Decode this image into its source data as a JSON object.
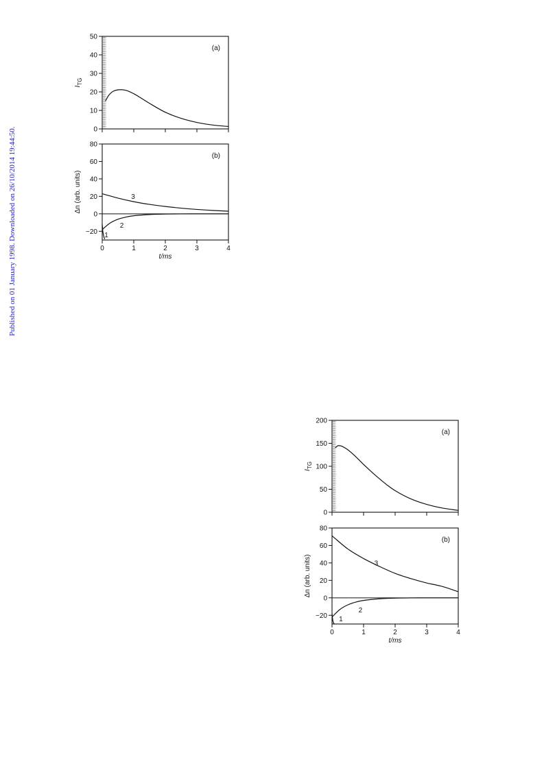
{
  "watermark": "Published on 01 January 1998. Downloaded on 26/10/2014 19:44:50.",
  "chart_data": [
    {
      "type": "line",
      "figure": 1,
      "panel": "(a)",
      "ylabel": "I",
      "ylabel_sub": "TG",
      "xlim": [
        0,
        4
      ],
      "ylim": [
        0,
        50
      ],
      "yticks": [
        0,
        10,
        20,
        30,
        40,
        50
      ],
      "xticks": [
        0,
        1,
        2,
        3,
        4
      ],
      "x_tick_labels_shown": false,
      "series": [
        {
          "x": [
            0.1,
            0.2,
            0.3,
            0.4,
            0.5,
            0.6,
            0.7,
            0.8,
            1.0,
            1.2,
            1.5,
            2.0,
            2.5,
            3.0,
            3.5,
            4.0
          ],
          "values": [
            15,
            18,
            19.8,
            20.7,
            21.1,
            21.2,
            21.0,
            20.6,
            19.0,
            17.0,
            13.8,
            9.0,
            5.7,
            3.5,
            2.1,
            1.3
          ]
        }
      ]
    },
    {
      "type": "line",
      "figure": 1,
      "panel": "(b)",
      "xlabel": "t/ms",
      "ylabel": "Δn (arb. units)",
      "xlim": [
        0,
        4
      ],
      "ylim": [
        -30,
        80
      ],
      "yticks": [
        -20,
        0,
        20,
        40,
        60,
        80
      ],
      "ytick_labels": [
        "−20",
        "0",
        "20",
        "40",
        "60",
        "80"
      ],
      "xticks": [
        0,
        1,
        2,
        3,
        4
      ],
      "series": [
        {
          "label": "1",
          "x": [
            0.0,
            0.02,
            0.05,
            0.08
          ],
          "values": [
            -12,
            -20,
            -26,
            -29
          ]
        },
        {
          "label": "2",
          "x": [
            0.0,
            0.25,
            0.5,
            0.75,
            1.0,
            1.5,
            2.0,
            2.5,
            3.0,
            4.0
          ],
          "values": [
            -18,
            -10.6,
            -6.2,
            -3.7,
            -2.2,
            -0.8,
            -0.3,
            -0.1,
            0,
            0
          ]
        },
        {
          "label": "3",
          "x": [
            0.0,
            0.5,
            1.0,
            1.5,
            2.0,
            2.5,
            3.0,
            3.5,
            4.0
          ],
          "values": [
            23,
            18,
            13.9,
            10.8,
            8.4,
            6.5,
            5.0,
            3.9,
            3.0
          ]
        }
      ]
    },
    {
      "type": "line",
      "figure": 2,
      "panel": "(a)",
      "ylabel": "I",
      "ylabel_sub": "TG",
      "xlim": [
        0,
        4
      ],
      "ylim": [
        0,
        200
      ],
      "yticks": [
        0,
        50,
        100,
        150,
        200
      ],
      "xticks": [
        0,
        1,
        2,
        3,
        4
      ],
      "x_tick_labels_shown": false,
      "series": [
        {
          "x": [
            0.1,
            0.2,
            0.3,
            0.5,
            0.75,
            1.0,
            1.25,
            1.5,
            1.75,
            2.0,
            2.5,
            3.0,
            3.5,
            4.0
          ],
          "values": [
            140,
            145,
            144,
            136,
            121,
            104,
            88,
            73,
            59,
            47,
            29,
            17,
            9,
            4
          ]
        }
      ]
    },
    {
      "type": "line",
      "figure": 2,
      "panel": "(b)",
      "xlabel": "t/ms",
      "ylabel": "Δn (arb. units)",
      "xlim": [
        0,
        4
      ],
      "ylim": [
        -30,
        80
      ],
      "yticks": [
        -20,
        0,
        20,
        40,
        60,
        80
      ],
      "ytick_labels": [
        "−20",
        "0",
        "20",
        "40",
        "60",
        "80"
      ],
      "xticks": [
        0,
        1,
        2,
        3,
        4
      ],
      "series": [
        {
          "label": "1",
          "x": [
            0.0,
            0.02,
            0.05,
            0.08
          ],
          "values": [
            -18,
            -25,
            -29,
            -30
          ]
        },
        {
          "label": "2",
          "x": [
            0.0,
            0.25,
            0.5,
            0.75,
            1.0,
            1.5,
            2.0,
            2.5,
            3.0,
            4.0
          ],
          "values": [
            -22,
            -13.3,
            -8.1,
            -4.9,
            -3.0,
            -1.1,
            -0.4,
            -0.1,
            0,
            0
          ]
        },
        {
          "label": "3",
          "x": [
            0.0,
            0.5,
            1.0,
            1.5,
            2.0,
            2.5,
            3.0,
            3.5,
            4.0
          ],
          "values": [
            71,
            56,
            45,
            36,
            28,
            22,
            17,
            13,
            7
          ]
        }
      ]
    }
  ]
}
